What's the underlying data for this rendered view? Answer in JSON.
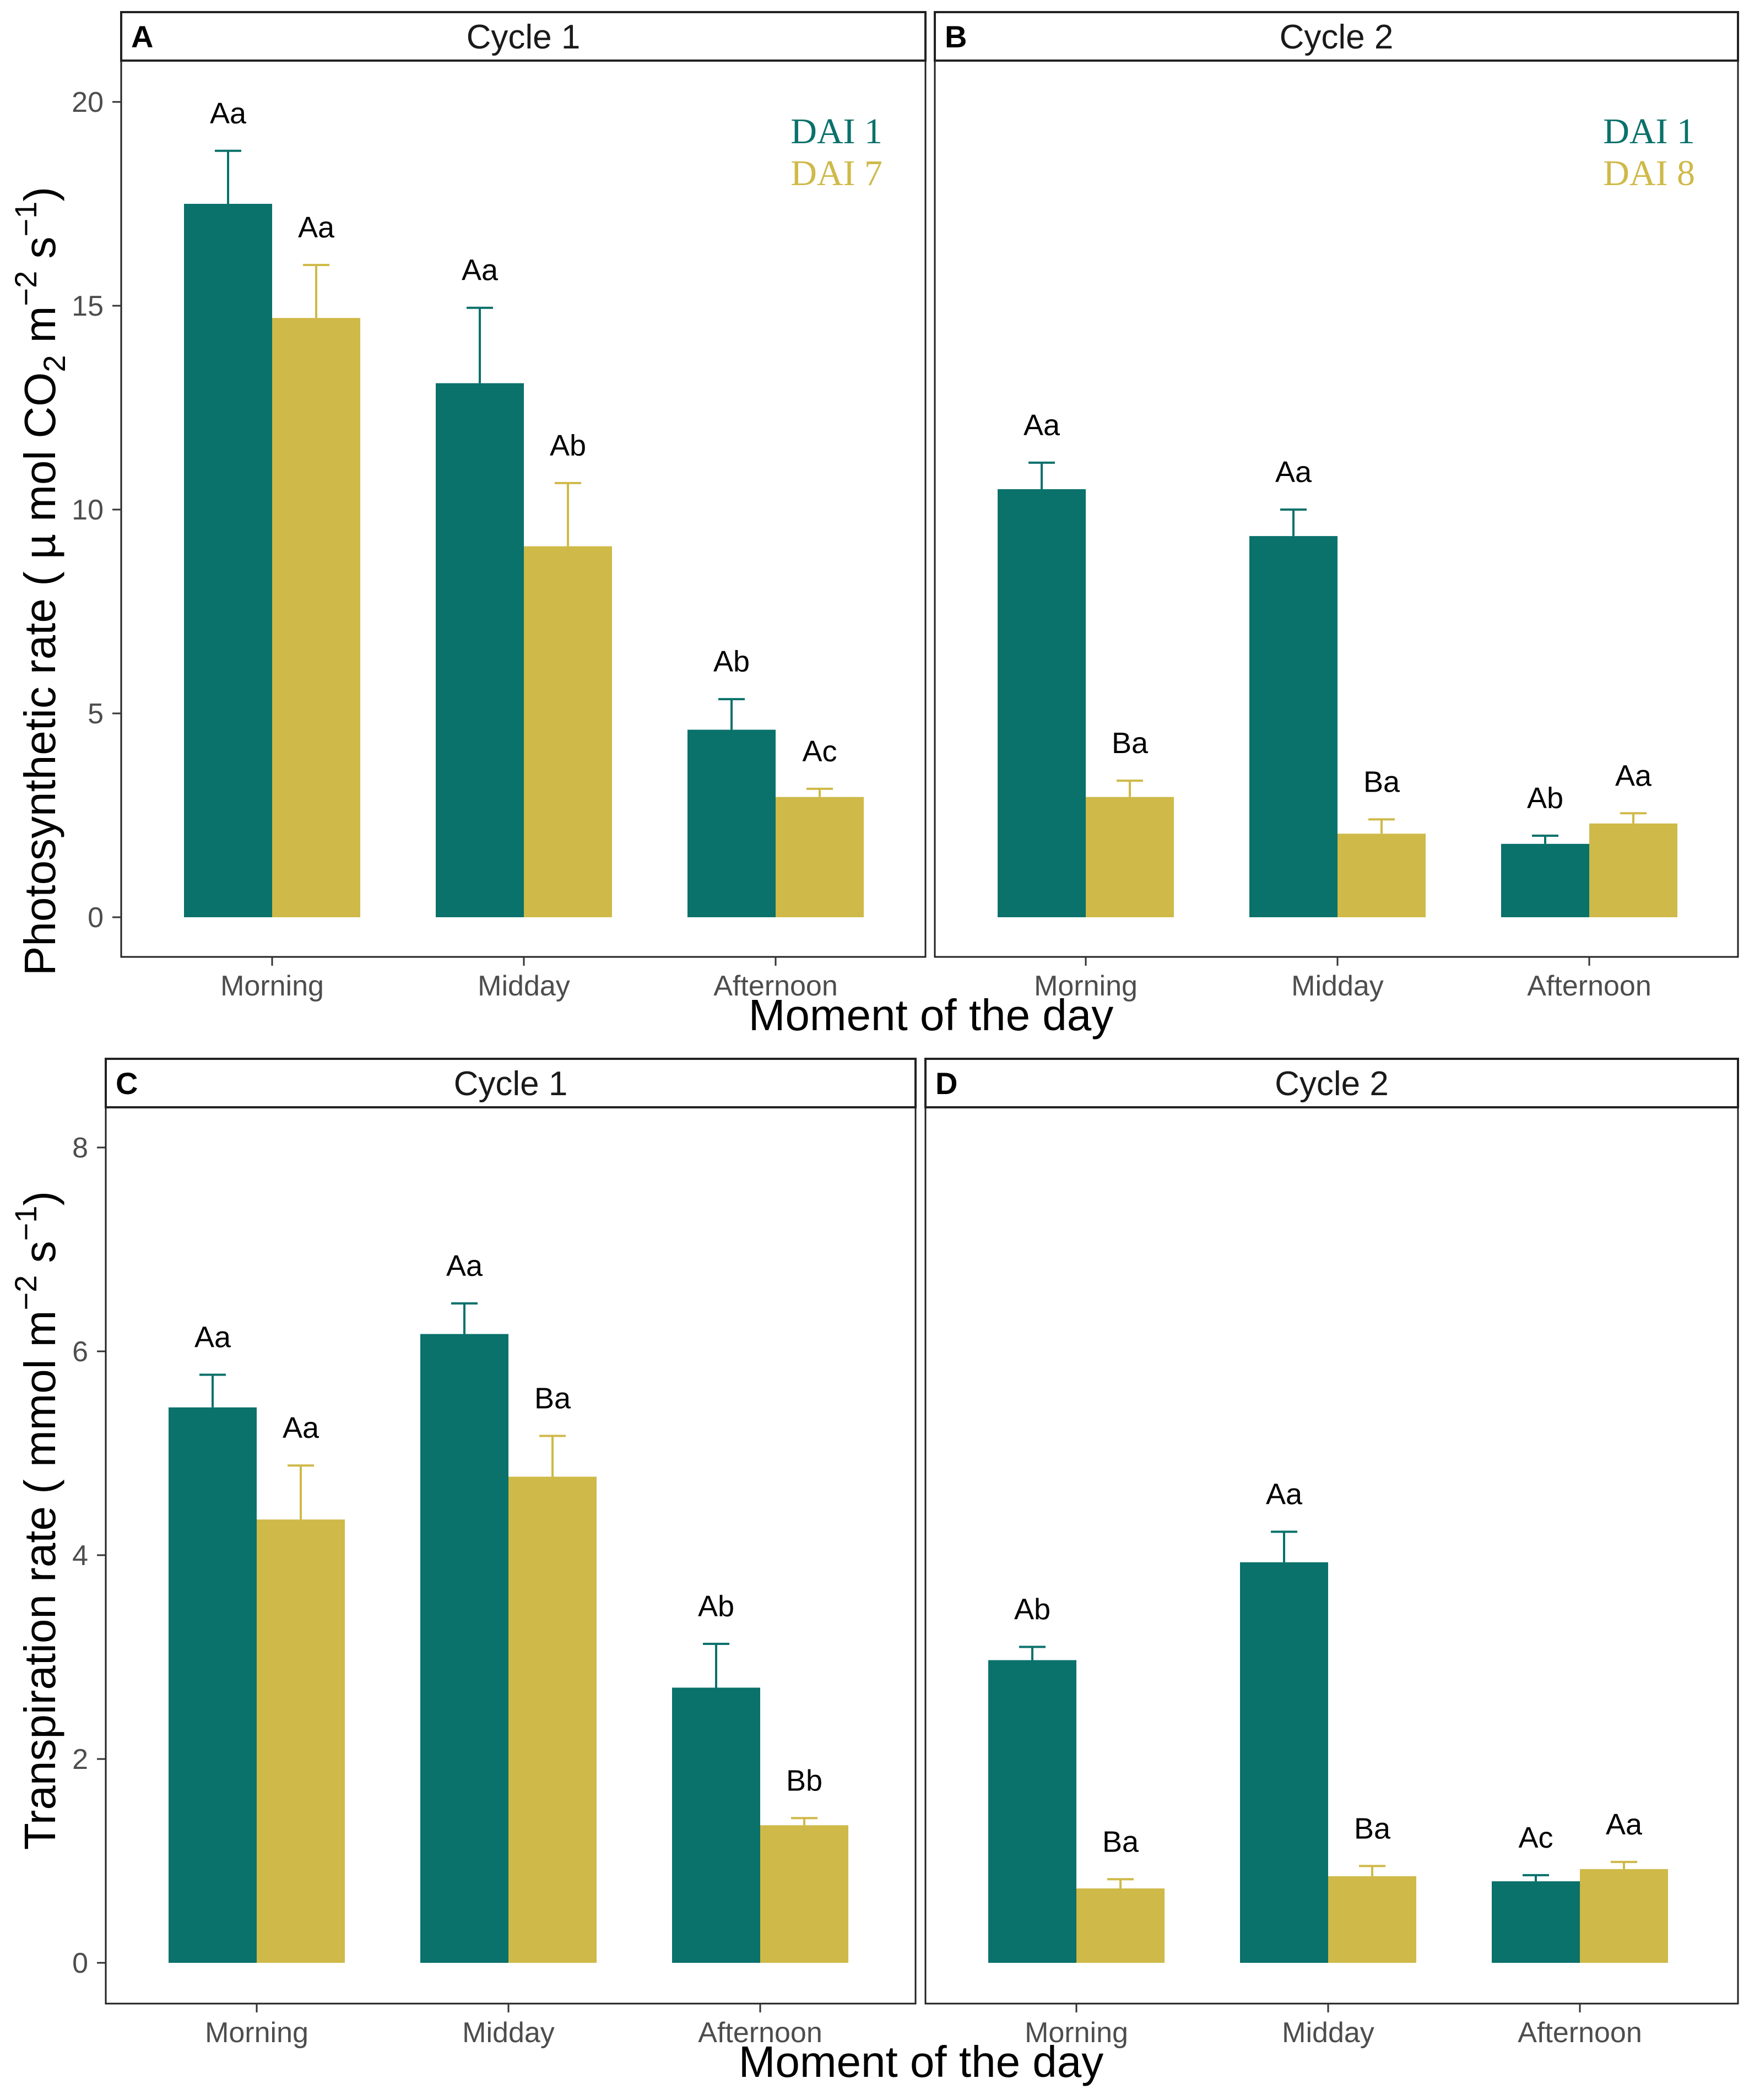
{
  "figure": {
    "xlabel_top": "Moment of the day",
    "xlabel_bottom": "Moment of the day",
    "ylabel_top": {
      "main": "Photosynthetic rate ( µ mol CO",
      "sub": "2",
      "mid": " m",
      "sup1": "−2",
      "mid2": " s",
      "sup2": "−1",
      "end": ")"
    },
    "ylabel_bottom": {
      "main": "Transpiration rate ( mmol m",
      "sup1": "−2",
      "mid": " s",
      "sup2": "−1",
      "end": ")"
    }
  },
  "colors": {
    "teal": "#0a716b",
    "gold": "#cfb948",
    "frame": "#222222",
    "axis_text": "#4d4d4d"
  },
  "chart_data": [
    {
      "panel": "A",
      "title": "Cycle 1",
      "type": "bar",
      "categories": [
        "Morning",
        "Midday",
        "Afternoon"
      ],
      "ylim": [
        0,
        21.5
      ],
      "yticks": [
        0,
        5,
        10,
        15,
        20
      ],
      "legend": [
        "DAI 1",
        "DAI 7"
      ],
      "series": [
        {
          "name": "DAI 1",
          "color": "teal",
          "values": [
            17.5,
            13.1,
            4.6
          ],
          "errors": [
            1.3,
            1.85,
            0.75
          ],
          "labels": [
            "Aa",
            "Aa",
            "Ab"
          ]
        },
        {
          "name": "DAI 7",
          "color": "gold",
          "values": [
            14.7,
            9.1,
            2.95
          ],
          "errors": [
            1.3,
            1.55,
            0.2
          ],
          "labels": [
            "Aa",
            "Ab",
            "Ac"
          ]
        }
      ]
    },
    {
      "panel": "B",
      "title": "Cycle 2",
      "type": "bar",
      "categories": [
        "Morning",
        "Midday",
        "Afternoon"
      ],
      "ylim": [
        0,
        21.5
      ],
      "yticks": [],
      "legend": [
        "DAI 1",
        "DAI 8"
      ],
      "series": [
        {
          "name": "DAI 1",
          "color": "teal",
          "values": [
            10.5,
            9.35,
            1.8
          ],
          "errors": [
            0.65,
            0.65,
            0.2
          ],
          "labels": [
            "Aa",
            "Aa",
            "Ab"
          ]
        },
        {
          "name": "DAI 8",
          "color": "gold",
          "values": [
            2.95,
            2.05,
            2.3
          ],
          "errors": [
            0.4,
            0.35,
            0.25
          ],
          "labels": [
            "Ba",
            "Ba",
            "Aa"
          ]
        }
      ]
    },
    {
      "panel": "C",
      "title": "Cycle 1",
      "type": "bar",
      "categories": [
        "Morning",
        "Midday",
        "Afternoon"
      ],
      "ylim": [
        0,
        8.5
      ],
      "yticks": [
        0,
        2,
        4,
        6,
        8
      ],
      "legend": [],
      "series": [
        {
          "name": "DAI 1",
          "color": "teal",
          "values": [
            5.45,
            6.17,
            2.7
          ],
          "errors": [
            0.32,
            0.3,
            0.43
          ],
          "labels": [
            "Aa",
            "Aa",
            "Ab"
          ]
        },
        {
          "name": "DAI 7",
          "color": "gold",
          "values": [
            4.35,
            4.77,
            1.35
          ],
          "errors": [
            0.53,
            0.4,
            0.07
          ],
          "labels": [
            "Aa",
            "Ba",
            "Bb"
          ]
        }
      ]
    },
    {
      "panel": "D",
      "title": "Cycle 2",
      "type": "bar",
      "categories": [
        "Morning",
        "Midday",
        "Afternoon"
      ],
      "ylim": [
        0,
        8.5
      ],
      "yticks": [],
      "legend": [],
      "series": [
        {
          "name": "DAI 1",
          "color": "teal",
          "values": [
            2.97,
            3.93,
            0.8
          ],
          "errors": [
            0.13,
            0.3,
            0.06
          ],
          "labels": [
            "Ab",
            "Aa",
            "Ac"
          ]
        },
        {
          "name": "DAI 8",
          "color": "gold",
          "values": [
            0.73,
            0.85,
            0.92
          ],
          "errors": [
            0.09,
            0.1,
            0.07
          ],
          "labels": [
            "Ba",
            "Ba",
            "Aa"
          ]
        }
      ]
    }
  ]
}
